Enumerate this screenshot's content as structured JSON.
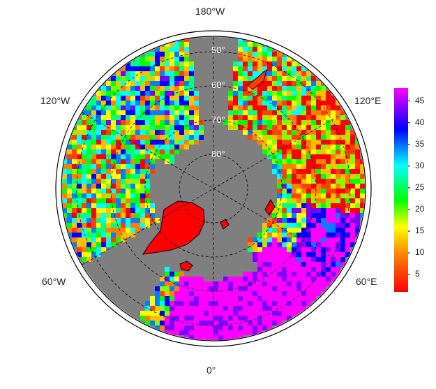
{
  "map": {
    "projection": "north-polar-stereographic",
    "longitude_labels": {
      "top": "180°W",
      "bottom": "0°",
      "upper_left": "120°W",
      "upper_right": "120°E",
      "lower_left": "60°W",
      "lower_right": "60°E"
    },
    "latitude_labels": [
      "50°",
      "60°",
      "70°",
      "80°"
    ],
    "colors": {
      "ocean": "#7f7f7f",
      "frame": "#000000",
      "graticule": "#000000",
      "coastline": "#000000"
    }
  },
  "colorbar": {
    "tick_labels": [
      "5",
      "10",
      "15",
      "20",
      "25",
      "30",
      "35",
      "40",
      "45"
    ],
    "min": 1,
    "max": 48,
    "colormap": [
      "#ff0000",
      "#ff8000",
      "#ffff00",
      "#00ff00",
      "#00ffff",
      "#0000ff",
      "#ff00ff"
    ]
  }
}
